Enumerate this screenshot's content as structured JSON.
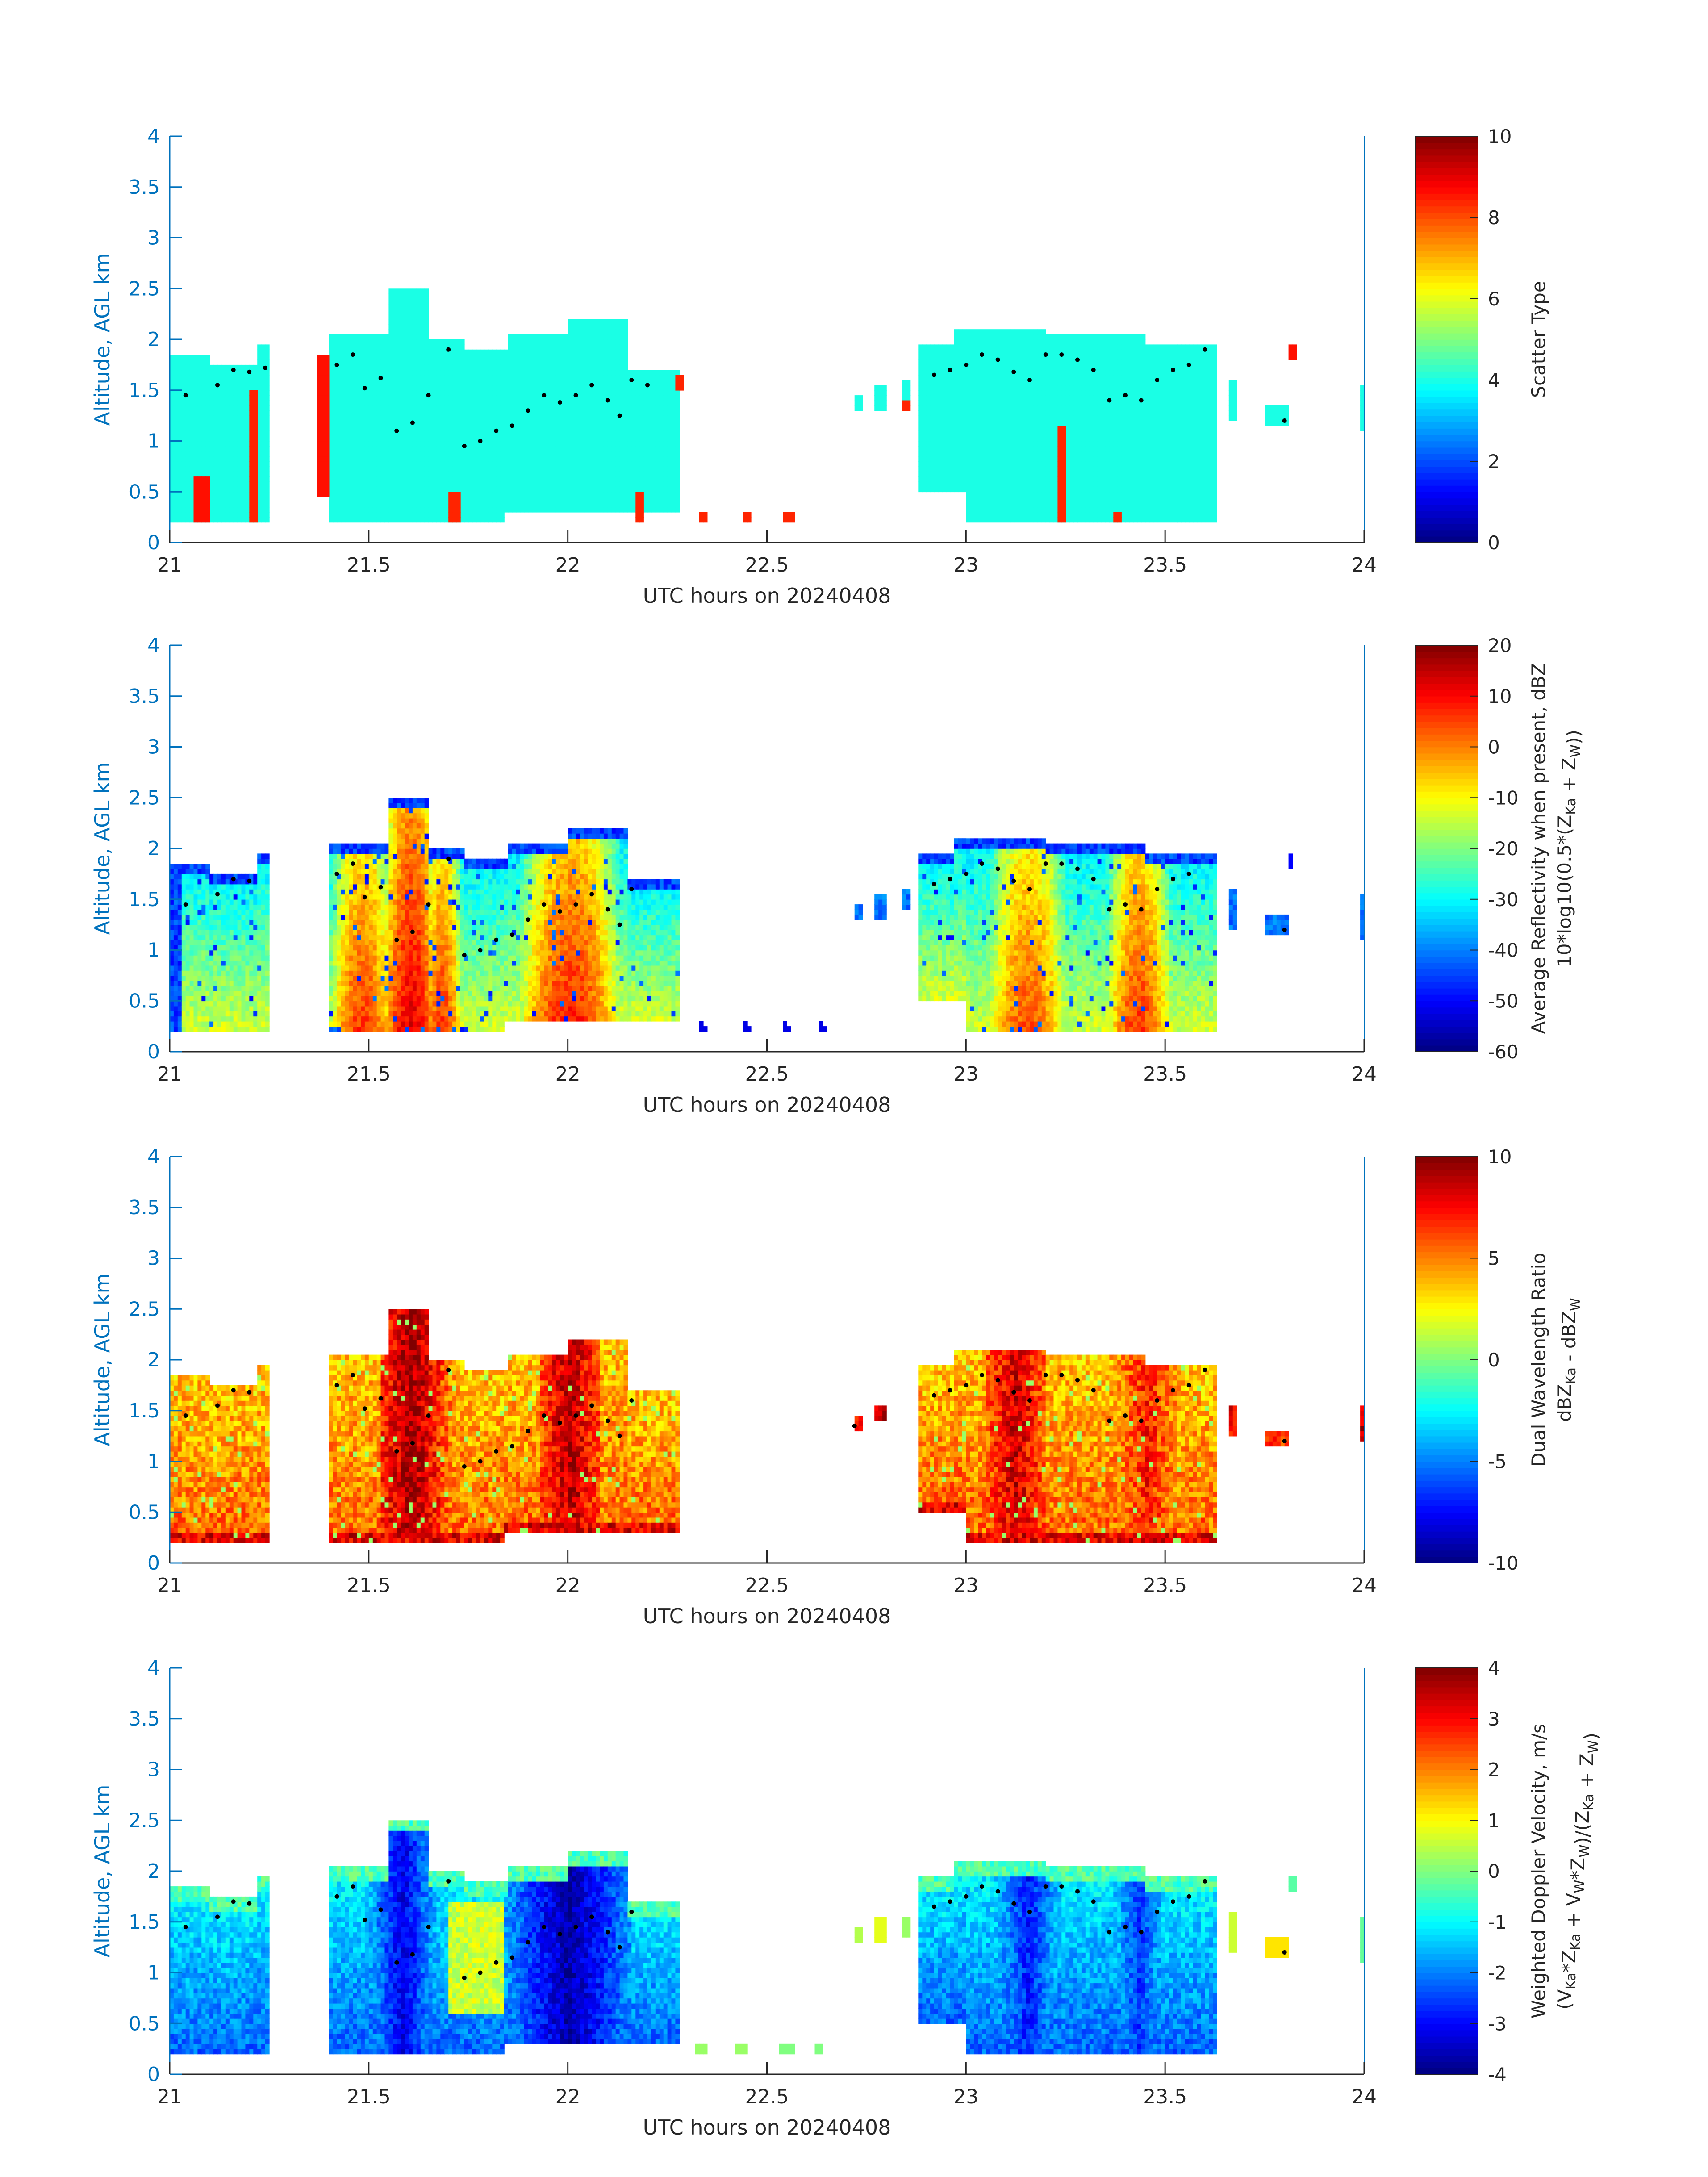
{
  "figure": {
    "colors": {
      "axis_blue": "#0072BD",
      "axis_dark": "#262626",
      "dot": "#000000"
    }
  },
  "chart_data": [
    {
      "type": "heatmap",
      "xlabel": "UTC hours on 20240408",
      "ylabel": "Altitude, AGL km",
      "xlim": [
        21,
        24
      ],
      "ylim": [
        0,
        4
      ],
      "xticks": [
        "21",
        "21.5",
        "22",
        "22.5",
        "23",
        "23.5",
        "24"
      ],
      "yticks": [
        "0",
        "0.5",
        "1",
        "1.5",
        "2",
        "2.5",
        "3",
        "3.5",
        "4"
      ],
      "colorbar": {
        "label_lines": [
          "Scatter Type"
        ],
        "range": [
          0,
          10
        ],
        "ticks": [
          "0",
          "2",
          "4",
          "6",
          "8",
          "10"
        ],
        "colormap": "jet"
      },
      "dominant_value": 4,
      "secondary_value": 8.5,
      "tops_km": [
        [
          21.0,
          21.1,
          1.85
        ],
        [
          21.1,
          21.22,
          1.75
        ],
        [
          21.22,
          21.25,
          1.95
        ],
        [
          21.4,
          21.55,
          2.05
        ],
        [
          21.55,
          21.65,
          2.5
        ],
        [
          21.65,
          21.74,
          2.0
        ],
        [
          21.74,
          21.85,
          1.9
        ],
        [
          21.85,
          22.0,
          2.05
        ],
        [
          22.0,
          22.15,
          2.2
        ],
        [
          22.15,
          22.28,
          1.7
        ],
        [
          22.88,
          22.97,
          1.95
        ],
        [
          22.97,
          23.2,
          2.1
        ],
        [
          23.2,
          23.45,
          2.05
        ],
        [
          23.45,
          23.63,
          1.95
        ]
      ],
      "bases_km": [
        [
          21.0,
          21.4,
          0.2
        ],
        [
          21.4,
          21.84,
          0.2
        ],
        [
          21.84,
          22.3,
          0.3
        ],
        [
          22.88,
          23.0,
          0.5
        ],
        [
          23.0,
          23.63,
          0.2
        ]
      ],
      "patches": [
        [
          21.06,
          21.1,
          0.2,
          0.65,
          8.6
        ],
        [
          21.2,
          21.22,
          0.2,
          1.5,
          8.4
        ],
        [
          21.37,
          21.4,
          0.45,
          1.85,
          8.6
        ],
        [
          21.7,
          21.73,
          0.2,
          0.5,
          8.4
        ],
        [
          22.17,
          22.19,
          0.2,
          0.5,
          8.4
        ],
        [
          22.27,
          22.29,
          1.5,
          1.65,
          8.4
        ],
        [
          22.33,
          22.35,
          0.2,
          0.3,
          8.4
        ],
        [
          22.44,
          22.46,
          0.2,
          0.3,
          8.4
        ],
        [
          22.54,
          22.57,
          0.2,
          0.3,
          8.4
        ],
        [
          23.23,
          23.25,
          0.2,
          1.15,
          8.4
        ],
        [
          23.37,
          23.39,
          0.2,
          0.3,
          8.4
        ],
        [
          23.81,
          23.83,
          1.8,
          1.95,
          8.6
        ],
        [
          22.84,
          22.86,
          1.3,
          1.4,
          8.4
        ]
      ],
      "isolated": [
        [
          22.72,
          22.74,
          1.3,
          1.45,
          4
        ],
        [
          22.77,
          22.8,
          1.3,
          1.55,
          4
        ],
        [
          22.84,
          22.86,
          1.4,
          1.6,
          4
        ],
        [
          23.66,
          23.68,
          1.2,
          1.6,
          4
        ],
        [
          23.75,
          23.81,
          1.15,
          1.35,
          4
        ],
        [
          23.99,
          24.0,
          1.1,
          1.55,
          4
        ]
      ],
      "dots": [
        [
          21.04,
          1.45
        ],
        [
          21.12,
          1.55
        ],
        [
          21.16,
          1.7
        ],
        [
          21.2,
          1.68
        ],
        [
          21.24,
          1.72
        ],
        [
          21.42,
          1.75
        ],
        [
          21.46,
          1.85
        ],
        [
          21.49,
          1.52
        ],
        [
          21.53,
          1.62
        ],
        [
          21.57,
          1.1
        ],
        [
          21.61,
          1.18
        ],
        [
          21.65,
          1.45
        ],
        [
          21.7,
          1.9
        ],
        [
          21.74,
          0.95
        ],
        [
          21.78,
          1.0
        ],
        [
          21.82,
          1.1
        ],
        [
          21.86,
          1.15
        ],
        [
          21.9,
          1.3
        ],
        [
          21.94,
          1.45
        ],
        [
          21.98,
          1.38
        ],
        [
          22.02,
          1.45
        ],
        [
          22.06,
          1.55
        ],
        [
          22.1,
          1.4
        ],
        [
          22.13,
          1.25
        ],
        [
          22.16,
          1.6
        ],
        [
          22.2,
          1.55
        ],
        [
          22.92,
          1.65
        ],
        [
          22.96,
          1.7
        ],
        [
          23.0,
          1.75
        ],
        [
          23.04,
          1.85
        ],
        [
          23.08,
          1.8
        ],
        [
          23.12,
          1.68
        ],
        [
          23.16,
          1.6
        ],
        [
          23.2,
          1.85
        ],
        [
          23.24,
          1.85
        ],
        [
          23.28,
          1.8
        ],
        [
          23.32,
          1.7
        ],
        [
          23.36,
          1.4
        ],
        [
          23.4,
          1.45
        ],
        [
          23.44,
          1.4
        ],
        [
          23.48,
          1.6
        ],
        [
          23.52,
          1.7
        ],
        [
          23.56,
          1.75
        ],
        [
          23.6,
          1.9
        ],
        [
          23.8,
          1.2
        ]
      ]
    },
    {
      "type": "heatmap",
      "xlabel": "UTC hours on 20240408",
      "ylabel": "Altitude, AGL km",
      "xlim": [
        21,
        24
      ],
      "ylim": [
        0,
        4
      ],
      "xticks": [
        "21",
        "21.5",
        "22",
        "22.5",
        "23",
        "23.5",
        "24"
      ],
      "yticks": [
        "0",
        "0.5",
        "1",
        "1.5",
        "2",
        "2.5",
        "3",
        "3.5",
        "4"
      ],
      "colorbar": {
        "label_lines": [
          "Average Reflectivity when present, dBZ",
          "10*log10(0.5*(Z_Ka + Z_W))"
        ],
        "range": [
          -60,
          20
        ],
        "ticks": [
          "-60",
          "-50",
          "-40",
          "-30",
          "-20",
          "-10",
          "0",
          "10",
          "20"
        ],
        "colormap": "jet"
      },
      "cores": [
        [
          21.6,
          0.07,
          12
        ],
        [
          21.48,
          0.08,
          6
        ],
        [
          21.68,
          0.05,
          6
        ],
        [
          22.0,
          0.12,
          8
        ],
        [
          23.15,
          0.1,
          4
        ],
        [
          23.43,
          0.08,
          6
        ],
        [
          21.12,
          0.06,
          -25
        ]
      ],
      "edge_value": -50,
      "outer_value": -35,
      "dots": [
        [
          21.04,
          1.45
        ],
        [
          21.12,
          1.55
        ],
        [
          21.16,
          1.7
        ],
        [
          21.2,
          1.68
        ],
        [
          21.42,
          1.75
        ],
        [
          21.46,
          1.85
        ],
        [
          21.49,
          1.52
        ],
        [
          21.53,
          1.62
        ],
        [
          21.57,
          1.1
        ],
        [
          21.61,
          1.18
        ],
        [
          21.65,
          1.45
        ],
        [
          21.7,
          1.9
        ],
        [
          21.74,
          0.95
        ],
        [
          21.78,
          1.0
        ],
        [
          21.82,
          1.1
        ],
        [
          21.86,
          1.15
        ],
        [
          21.9,
          1.3
        ],
        [
          21.94,
          1.45
        ],
        [
          21.98,
          1.38
        ],
        [
          22.02,
          1.45
        ],
        [
          22.06,
          1.55
        ],
        [
          22.1,
          1.4
        ],
        [
          22.13,
          1.25
        ],
        [
          22.16,
          1.6
        ],
        [
          22.92,
          1.65
        ],
        [
          22.96,
          1.7
        ],
        [
          23.0,
          1.75
        ],
        [
          23.04,
          1.85
        ],
        [
          23.08,
          1.8
        ],
        [
          23.12,
          1.68
        ],
        [
          23.16,
          1.6
        ],
        [
          23.2,
          1.85
        ],
        [
          23.24,
          1.85
        ],
        [
          23.28,
          1.8
        ],
        [
          23.32,
          1.7
        ],
        [
          23.36,
          1.4
        ],
        [
          23.4,
          1.45
        ],
        [
          23.44,
          1.4
        ],
        [
          23.48,
          1.6
        ],
        [
          23.52,
          1.7
        ],
        [
          23.56,
          1.75
        ],
        [
          23.8,
          1.2
        ]
      ]
    },
    {
      "type": "heatmap",
      "xlabel": "UTC hours on 20240408",
      "ylabel": "Altitude, AGL km",
      "xlim": [
        21,
        24
      ],
      "ylim": [
        0,
        4
      ],
      "xticks": [
        "21",
        "21.5",
        "22",
        "22.5",
        "23",
        "23.5",
        "24"
      ],
      "yticks": [
        "0",
        "0.5",
        "1",
        "1.5",
        "2",
        "2.5",
        "3",
        "3.5",
        "4"
      ],
      "colorbar": {
        "label_lines": [
          "Dual Wavelength Ratio",
          "dBZ_Ka - dBZ_W"
        ],
        "range": [
          -10,
          10
        ],
        "ticks": [
          "-10",
          "-5",
          "0",
          "5",
          "10"
        ],
        "colormap": "jet"
      },
      "cores": [
        [
          21.6,
          0.05,
          9.5
        ],
        [
          21.66,
          0.04,
          7
        ],
        [
          22.0,
          0.05,
          9
        ],
        [
          23.12,
          0.05,
          8.5
        ],
        [
          23.45,
          0.06,
          7
        ]
      ],
      "base_value": 7,
      "dots": [
        [
          21.04,
          1.45
        ],
        [
          21.12,
          1.55
        ],
        [
          21.16,
          1.7
        ],
        [
          21.2,
          1.68
        ],
        [
          21.42,
          1.75
        ],
        [
          21.46,
          1.85
        ],
        [
          21.49,
          1.52
        ],
        [
          21.53,
          1.62
        ],
        [
          21.57,
          1.1
        ],
        [
          21.61,
          1.18
        ],
        [
          21.65,
          1.45
        ],
        [
          21.7,
          1.9
        ],
        [
          21.74,
          0.95
        ],
        [
          21.78,
          1.0
        ],
        [
          21.82,
          1.1
        ],
        [
          21.86,
          1.15
        ],
        [
          21.9,
          1.3
        ],
        [
          21.94,
          1.45
        ],
        [
          21.98,
          1.38
        ],
        [
          22.02,
          1.45
        ],
        [
          22.06,
          1.55
        ],
        [
          22.1,
          1.4
        ],
        [
          22.13,
          1.25
        ],
        [
          22.16,
          1.6
        ],
        [
          22.72,
          1.35
        ],
        [
          22.92,
          1.65
        ],
        [
          22.96,
          1.7
        ],
        [
          23.0,
          1.75
        ],
        [
          23.04,
          1.85
        ],
        [
          23.08,
          1.8
        ],
        [
          23.12,
          1.68
        ],
        [
          23.16,
          1.6
        ],
        [
          23.2,
          1.85
        ],
        [
          23.24,
          1.85
        ],
        [
          23.28,
          1.8
        ],
        [
          23.32,
          1.7
        ],
        [
          23.36,
          1.4
        ],
        [
          23.4,
          1.45
        ],
        [
          23.44,
          1.4
        ],
        [
          23.48,
          1.6
        ],
        [
          23.52,
          1.7
        ],
        [
          23.56,
          1.75
        ],
        [
          23.6,
          1.9
        ],
        [
          23.8,
          1.2
        ]
      ]
    },
    {
      "type": "heatmap",
      "xlabel": "UTC hours on 20240408",
      "ylabel": "Altitude, AGL km",
      "xlim": [
        21,
        24
      ],
      "ylim": [
        0,
        4
      ],
      "xticks": [
        "21",
        "21.5",
        "22",
        "22.5",
        "23",
        "23.5",
        "24"
      ],
      "yticks": [
        "0",
        "0.5",
        "1",
        "1.5",
        "2",
        "2.5",
        "3",
        "3.5",
        "4"
      ],
      "colorbar": {
        "label_lines": [
          "Weighted Doppler Velocity, m/s",
          "(V_Ka*Z_Ka + V_W*Z_W)/(Z_Ka + Z_W)"
        ],
        "range": [
          -4,
          4
        ],
        "ticks": [
          "-4",
          "-3",
          "-2",
          "-1",
          "0",
          "1",
          "2",
          "3",
          "4"
        ],
        "colormap": "jet"
      },
      "cores": [
        [
          21.58,
          0.06,
          -3.2
        ],
        [
          22.0,
          0.1,
          -3.7
        ],
        [
          23.15,
          0.07,
          -2.8
        ],
        [
          23.43,
          0.06,
          -2.6
        ]
      ],
      "warm_zone": [
        21.7,
        21.84,
        0.6,
        1.7,
        0.6
      ],
      "sparse_cells": [
        [
          22.32,
          22.35,
          0.2,
          0.3,
          0.2
        ],
        [
          22.42,
          22.45,
          0.2,
          0.3,
          0.2
        ],
        [
          22.53,
          22.57,
          0.2,
          0.3,
          0.0
        ],
        [
          22.62,
          22.64,
          0.2,
          0.3,
          0.0
        ],
        [
          22.72,
          22.74,
          1.3,
          1.45,
          0.4
        ],
        [
          22.77,
          22.8,
          1.3,
          1.55,
          0.8
        ],
        [
          22.84,
          22.86,
          1.35,
          1.55,
          0.2
        ],
        [
          23.66,
          23.68,
          1.2,
          1.6,
          0.6
        ],
        [
          23.75,
          23.81,
          1.15,
          1.35,
          1.2
        ],
        [
          23.81,
          23.83,
          1.8,
          1.95,
          -0.3
        ],
        [
          23.99,
          24.0,
          1.1,
          1.55,
          -0.2
        ]
      ],
      "dots": [
        [
          21.04,
          1.45
        ],
        [
          21.12,
          1.55
        ],
        [
          21.16,
          1.7
        ],
        [
          21.2,
          1.68
        ],
        [
          21.42,
          1.75
        ],
        [
          21.46,
          1.85
        ],
        [
          21.49,
          1.52
        ],
        [
          21.53,
          1.62
        ],
        [
          21.57,
          1.1
        ],
        [
          21.61,
          1.18
        ],
        [
          21.65,
          1.45
        ],
        [
          21.7,
          1.9
        ],
        [
          21.74,
          0.95
        ],
        [
          21.78,
          1.0
        ],
        [
          21.82,
          1.1
        ],
        [
          21.86,
          1.15
        ],
        [
          21.9,
          1.3
        ],
        [
          21.94,
          1.45
        ],
        [
          21.98,
          1.38
        ],
        [
          22.02,
          1.45
        ],
        [
          22.06,
          1.55
        ],
        [
          22.1,
          1.4
        ],
        [
          22.13,
          1.25
        ],
        [
          22.16,
          1.6
        ],
        [
          22.92,
          1.65
        ],
        [
          22.96,
          1.7
        ],
        [
          23.0,
          1.75
        ],
        [
          23.04,
          1.85
        ],
        [
          23.08,
          1.8
        ],
        [
          23.12,
          1.68
        ],
        [
          23.16,
          1.6
        ],
        [
          23.2,
          1.85
        ],
        [
          23.24,
          1.85
        ],
        [
          23.28,
          1.8
        ],
        [
          23.32,
          1.7
        ],
        [
          23.36,
          1.4
        ],
        [
          23.4,
          1.45
        ],
        [
          23.44,
          1.4
        ],
        [
          23.48,
          1.6
        ],
        [
          23.52,
          1.7
        ],
        [
          23.56,
          1.75
        ],
        [
          23.6,
          1.9
        ],
        [
          23.8,
          1.2
        ]
      ]
    }
  ]
}
